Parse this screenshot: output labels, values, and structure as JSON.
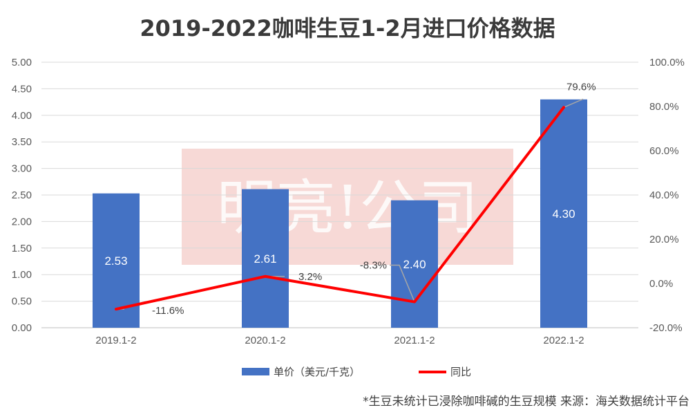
{
  "chart_data": {
    "type": "bar",
    "title": "2019-2022咖啡生豆1-2月进口价格数据",
    "categories": [
      "2019.1-2",
      "2020.1-2",
      "2021.1-2",
      "2022.1-2"
    ],
    "series": [
      {
        "name": "单价（美元/千克）",
        "type": "bar",
        "axis": "left",
        "values": [
          2.53,
          2.61,
          2.4,
          4.3
        ],
        "labels": [
          "2.53",
          "2.61",
          "2.40",
          "4.30"
        ],
        "color": "#4472C4"
      },
      {
        "name": "同比",
        "type": "line",
        "axis": "right",
        "values": [
          -11.6,
          3.2,
          -8.3,
          79.6
        ],
        "labels": [
          "-11.6%",
          "3.2%",
          "-8.3%",
          "79.6%"
        ],
        "color": "#FF0000"
      }
    ],
    "y_left": {
      "min": 0,
      "max": 5,
      "step": 0.5,
      "ticks": [
        "0.00",
        "0.50",
        "1.00",
        "1.50",
        "2.00",
        "2.50",
        "3.00",
        "3.50",
        "4.00",
        "4.50",
        "5.00"
      ]
    },
    "y_right": {
      "min": -20,
      "max": 100,
      "step": 20,
      "ticks": [
        "-20.0%",
        "0.0%",
        "20.0%",
        "40.0%",
        "60.0%",
        "80.0%",
        "100.0%"
      ]
    },
    "grid": true,
    "legend_position": "bottom",
    "watermark": "明亮!公司",
    "footnote": "*生豆未统计已浸除咖啡碱的生豆规模  来源：海关数据统计平台"
  }
}
